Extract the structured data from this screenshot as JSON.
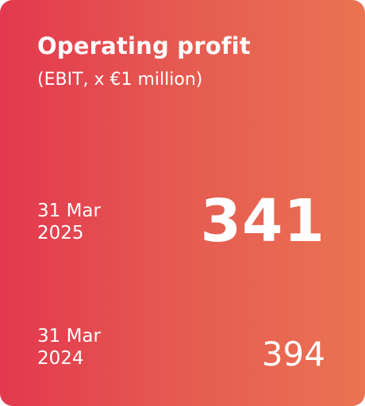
{
  "card": {
    "title": "Operating profit",
    "subtitle": "(EBIT, x €1 million)",
    "current": {
      "date_line1": "31 Mar",
      "date_line2": "2025",
      "value": "341"
    },
    "previous": {
      "date_line1": "31 Mar",
      "date_line2": "2024",
      "value": "394"
    }
  },
  "colors": {
    "gradient_start": "#e3384e",
    "gradient_end": "#ea7352",
    "text": "#ffffff"
  }
}
